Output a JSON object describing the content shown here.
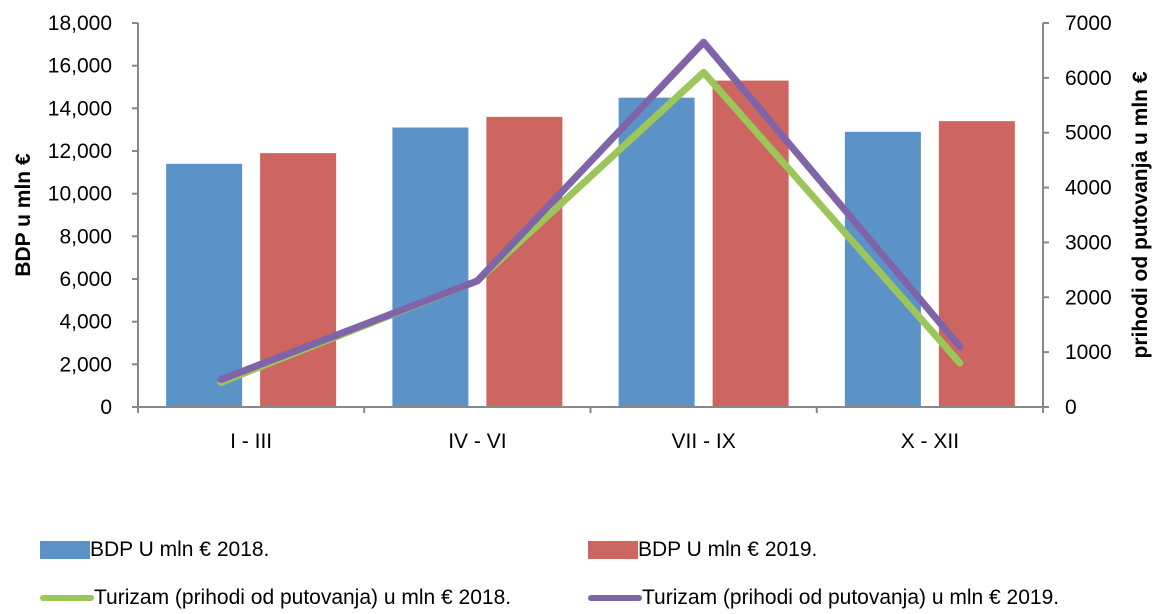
{
  "chart_data": {
    "type": "bar",
    "categories": [
      "I - III",
      "IV - VI",
      "VII - IX",
      "X - XII"
    ],
    "series": [
      {
        "name": "BDP U mln € 2018.",
        "kind": "bar",
        "axis": "left",
        "color": "#5b93c8",
        "values": [
          11400,
          13100,
          14500,
          12900
        ]
      },
      {
        "name": "BDP U mln € 2019.",
        "kind": "bar",
        "axis": "left",
        "color": "#cd6660",
        "values": [
          11900,
          13600,
          15300,
          13400
        ]
      },
      {
        "name": "Turizam (prihodi od putovanja) u mln € 2018.",
        "kind": "line",
        "axis": "right",
        "color": "#9bc65a",
        "values": [
          450,
          2300,
          6100,
          800
        ]
      },
      {
        "name": "Turizam (prihodi od putovanja) u mln € 2019.",
        "kind": "line",
        "axis": "right",
        "color": "#8064a8",
        "values": [
          500,
          2300,
          6650,
          1100
        ]
      }
    ],
    "ylabel": "BDP u mln €",
    "ylabel_right": "prihodi od putovanja u mln €",
    "ylim": [
      0,
      18000
    ],
    "ylim_right": [
      0,
      7000
    ],
    "yticks": [
      "0",
      "2,000",
      "4,000",
      "6,000",
      "8,000",
      "10,000",
      "12,000",
      "14,000",
      "16,000",
      "18,000"
    ],
    "yticks_right": [
      "0",
      "1000",
      "2000",
      "3000",
      "4000",
      "5000",
      "6000",
      "7000"
    ],
    "grid": false,
    "legend_position": "bottom"
  }
}
